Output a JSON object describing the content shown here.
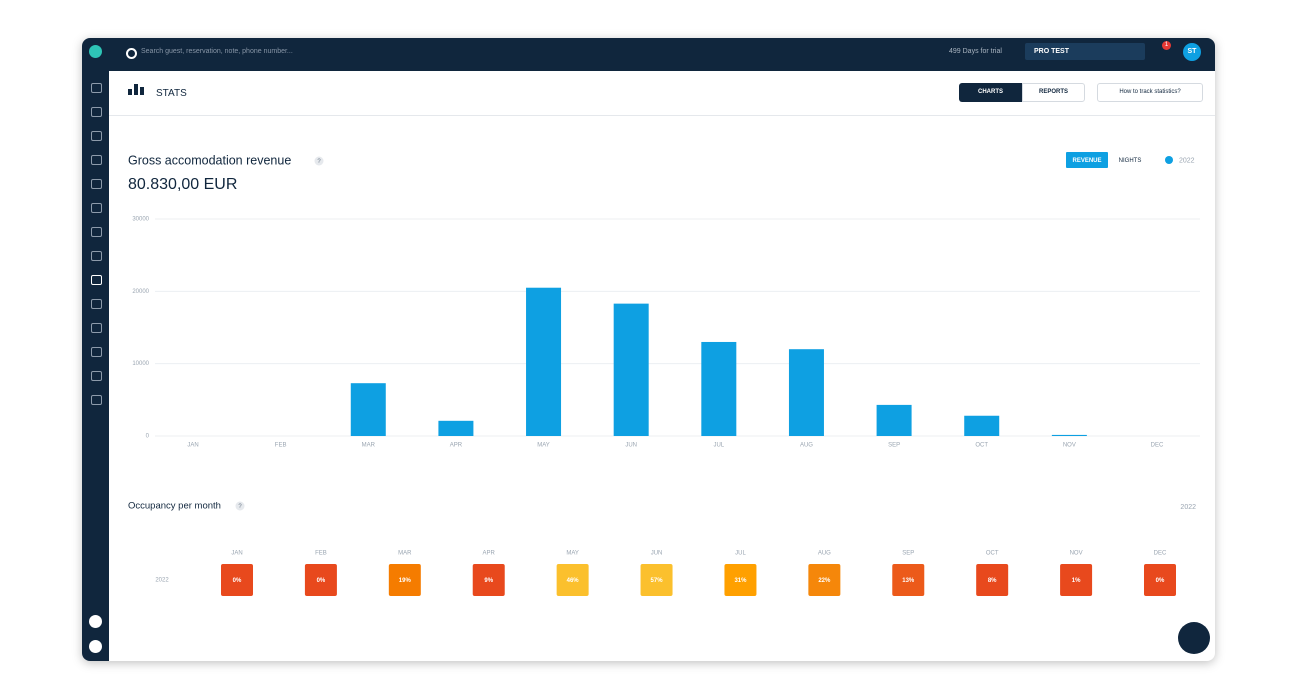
{
  "topbar": {
    "search_placeholder": "Search guest, reservation, note, phone number...",
    "trial": "499 Days for trial",
    "property": "PRO TEST",
    "notifications": "1",
    "avatar": "ST"
  },
  "header": {
    "title": "STATS",
    "tabs": [
      "CHARTS",
      "REPORTS"
    ],
    "help": "How to track statistics?"
  },
  "chart_data": {
    "type": "bar",
    "title": "Gross accomodation revenue",
    "help": "?",
    "total": "80.830,00 EUR",
    "toggles": [
      "REVENUE",
      "NIGHTS"
    ],
    "categories": [
      "JAN",
      "FEB",
      "MAR",
      "APR",
      "MAY",
      "JUN",
      "JUL",
      "AUG",
      "SEP",
      "OCT",
      "NOV",
      "DEC"
    ],
    "series": [
      {
        "name": "2022",
        "color": "#0ea0e2",
        "values": [
          0,
          0,
          7300,
          2100,
          20500,
          18300,
          13000,
          12000,
          4300,
          2800,
          150,
          0
        ]
      }
    ],
    "ylim": [
      0,
      30000
    ],
    "yticks": [
      0,
      10000,
      20000,
      30000
    ],
    "grid": true
  },
  "occupancy": {
    "title": "Occupancy per month",
    "help": "?",
    "year": "2022",
    "months": [
      "JAN",
      "FEB",
      "MAR",
      "APR",
      "MAY",
      "JUN",
      "JUL",
      "AUG",
      "SEP",
      "OCT",
      "NOV",
      "DEC"
    ],
    "rows": [
      {
        "label": "2022",
        "values": [
          0,
          0,
          19,
          9,
          46,
          57,
          31,
          22,
          13,
          8,
          1,
          0
        ],
        "value_labels": [
          "0%",
          "0%",
          "19%",
          "9%",
          "46%",
          "57%",
          "31%",
          "22%",
          "13%",
          "8%",
          "1%",
          "0%"
        ],
        "colors": [
          "#e8491d",
          "#e8491d",
          "#f57c00",
          "#e8491d",
          "#fbc02d",
          "#fbc02d",
          "#ffa000",
          "#f5870a",
          "#ec5a1a",
          "#e8491d",
          "#e8491d",
          "#e8491d"
        ]
      }
    ]
  }
}
